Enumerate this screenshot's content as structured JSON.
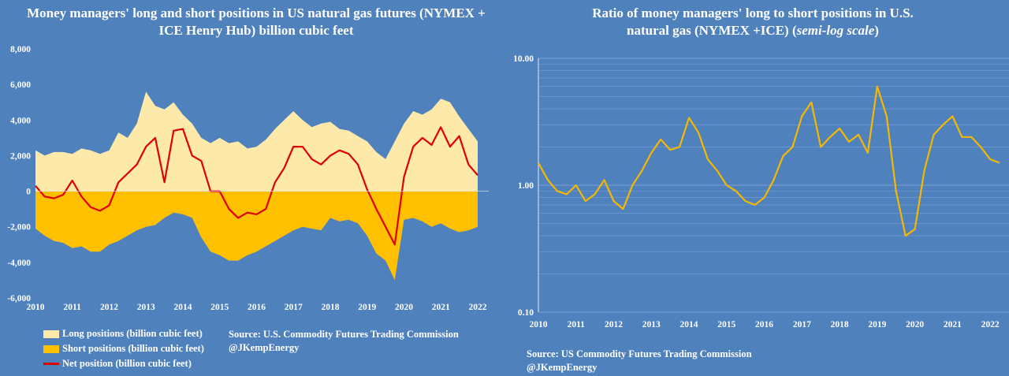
{
  "left": {
    "title": "Money managers' long and short positions in US natural gas futures (NYMEX + ICE Henry Hub) billion cubic feet",
    "source_line1": "Source: U.S. Commodity Futures Trading Commission",
    "source_line2": "@JKempEnergy",
    "legend": {
      "long": "Long positions (billion cubic feet)",
      "short": "Short positions (billion cubic feet)",
      "net": "Net position (billion cubic feet)"
    }
  },
  "right": {
    "title_line1": "Ratio of money managers' long to short positions in U.S.",
    "title_line2_a": "natural gas  (NYMEX +ICE) (",
    "title_line2_b": "semi-log scale",
    "title_line2_c": ")",
    "source_line1": "Source: US Commodity Futures Trading Commission",
    "source_line2": "@JKempEnergy"
  },
  "colors": {
    "background": "#4f81bd",
    "plot_bg": "#4f81bd",
    "long_fill": "#fde9a9",
    "short_fill": "#ffc000",
    "net_line": "#e00000",
    "ratio_line": "#f5b800",
    "grid": "#7ea1d4"
  },
  "chart_data": [
    {
      "type": "area",
      "title": "Money managers' long and short positions in US natural gas futures (NYMEX + ICE Henry Hub) billion cubic feet",
      "ylim": [
        -6000,
        8000
      ],
      "yticks": [
        "8,000",
        "6,000",
        "4,000",
        "2,000",
        "0",
        "-2,000",
        "-4,000",
        "-6,000"
      ],
      "ytick_values": [
        8000,
        6000,
        4000,
        2000,
        0,
        -2000,
        -4000,
        -6000
      ],
      "xlim": [
        2010,
        2022.3
      ],
      "xticks": [
        "2010",
        "2011",
        "2012",
        "2013",
        "2014",
        "2015",
        "2016",
        "2017",
        "2018",
        "2019",
        "2020",
        "2021",
        "2022"
      ],
      "x": [
        2010.0,
        2010.25,
        2010.5,
        2010.75,
        2011.0,
        2011.25,
        2011.5,
        2011.75,
        2012.0,
        2012.25,
        2012.5,
        2012.75,
        2013.0,
        2013.25,
        2013.5,
        2013.75,
        2014.0,
        2014.25,
        2014.5,
        2014.75,
        2015.0,
        2015.25,
        2015.5,
        2015.75,
        2016.0,
        2016.25,
        2016.5,
        2016.75,
        2017.0,
        2017.25,
        2017.5,
        2017.75,
        2018.0,
        2018.25,
        2018.5,
        2018.75,
        2019.0,
        2019.25,
        2019.5,
        2019.75,
        2020.0,
        2020.25,
        2020.5,
        2020.75,
        2021.0,
        2021.25,
        2021.5,
        2021.75,
        2022.0
      ],
      "series": [
        {
          "name": "Long positions (billion cubic feet)",
          "values": [
            2300,
            2000,
            2200,
            2200,
            2100,
            2400,
            2300,
            2100,
            2300,
            3300,
            3000,
            3800,
            5600,
            4800,
            4600,
            5000,
            4300,
            3800,
            3000,
            2700,
            3000,
            2700,
            2800,
            2400,
            2500,
            2900,
            3500,
            4000,
            4500,
            4000,
            3600,
            3800,
            3900,
            3500,
            3400,
            3100,
            2800,
            2200,
            1800,
            2800,
            3800,
            4500,
            4300,
            4600,
            5200,
            5000,
            4200,
            3500,
            2800
          ]
        },
        {
          "name": "Short positions (billion cubic feet)",
          "values": [
            -2100,
            -2500,
            -2800,
            -2900,
            -3200,
            -3100,
            -3400,
            -3400,
            -3000,
            -2800,
            -2500,
            -2200,
            -2000,
            -1900,
            -1500,
            -1200,
            -1300,
            -1500,
            -2600,
            -3400,
            -3600,
            -3900,
            -3900,
            -3600,
            -3400,
            -3100,
            -2800,
            -2500,
            -2200,
            -2000,
            -2100,
            -2200,
            -1500,
            -1700,
            -1600,
            -1800,
            -2500,
            -3500,
            -3900,
            -5000,
            -1600,
            -1500,
            -1700,
            -2000,
            -1800,
            -2100,
            -2300,
            -2200,
            -2000
          ]
        },
        {
          "name": "Net position (billion cubic feet)",
          "values": [
            300,
            -300,
            -400,
            -200,
            600,
            -300,
            -900,
            -1100,
            -800,
            500,
            1000,
            1500,
            2500,
            3000,
            500,
            3400,
            3500,
            2000,
            1700,
            0,
            0,
            -1000,
            -1500,
            -1200,
            -1300,
            -1000,
            500,
            1300,
            2500,
            2500,
            1800,
            1500,
            2000,
            2300,
            2100,
            1500,
            100,
            -1000,
            -2000,
            -3000,
            800,
            2500,
            3000,
            2600,
            3600,
            2500,
            3100,
            1500,
            900
          ]
        }
      ]
    },
    {
      "type": "line",
      "title": "Ratio of money managers' long to short positions in U.S. natural gas  (NYMEX +ICE) (semi-log scale)",
      "yscale": "log",
      "ylim": [
        0.1,
        10
      ],
      "yticks": [
        "10.00",
        "1.00",
        "0.10"
      ],
      "ytick_values": [
        10,
        1,
        0.1
      ],
      "xlim": [
        2010,
        2022.5
      ],
      "xticks": [
        "2010",
        "2011",
        "2012",
        "2013",
        "2014",
        "2015",
        "2016",
        "2017",
        "2018",
        "2019",
        "2020",
        "2021",
        "2022"
      ],
      "grid": true,
      "series": [
        {
          "name": "",
          "x": [
            2010.0,
            2010.25,
            2010.5,
            2010.75,
            2011.0,
            2011.25,
            2011.5,
            2011.75,
            2012.0,
            2012.25,
            2012.5,
            2012.75,
            2013.0,
            2013.25,
            2013.5,
            2013.75,
            2014.0,
            2014.25,
            2014.5,
            2014.75,
            2015.0,
            2015.25,
            2015.5,
            2015.75,
            2016.0,
            2016.25,
            2016.5,
            2016.75,
            2017.0,
            2017.25,
            2017.5,
            2017.75,
            2018.0,
            2018.25,
            2018.5,
            2018.75,
            2019.0,
            2019.25,
            2019.5,
            2019.75,
            2020.0,
            2020.25,
            2020.5,
            2020.75,
            2021.0,
            2021.25,
            2021.5,
            2021.75,
            2022.0,
            2022.25
          ],
          "values": [
            1.5,
            1.1,
            0.9,
            0.85,
            1.0,
            0.75,
            0.85,
            1.1,
            0.75,
            0.65,
            1.0,
            1.3,
            1.8,
            2.3,
            1.9,
            2.0,
            3.4,
            2.6,
            1.6,
            1.3,
            1.0,
            0.9,
            0.75,
            0.7,
            0.8,
            1.1,
            1.7,
            2.0,
            3.5,
            4.5,
            2.0,
            2.4,
            2.8,
            2.2,
            2.5,
            1.8,
            6.0,
            3.5,
            0.9,
            0.4,
            0.45,
            1.3,
            2.5,
            3.0,
            3.5,
            2.4,
            2.4,
            2.0,
            1.6,
            1.5
          ]
        }
      ]
    }
  ]
}
